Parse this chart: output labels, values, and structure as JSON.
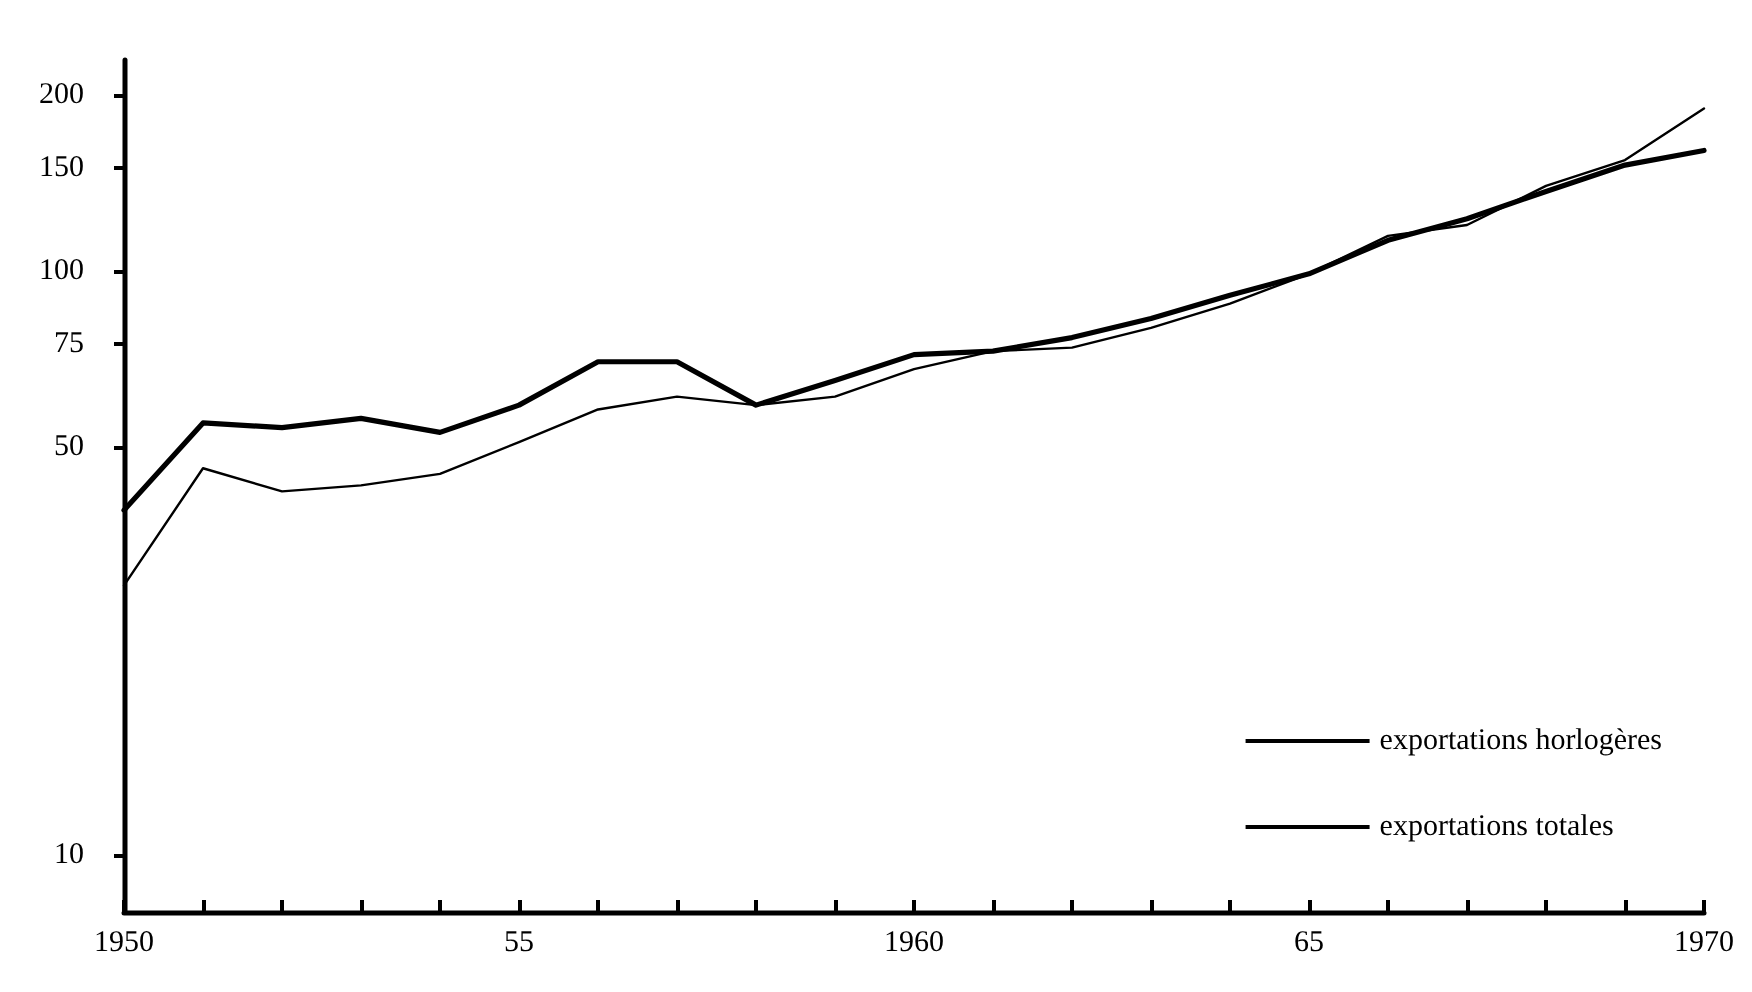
{
  "chart_data": {
    "type": "line",
    "log": "y",
    "grid": false,
    "marker": "none",
    "line_style": "solid",
    "legend": "bottom right",
    "x": [
      1950,
      1951,
      1952,
      1953,
      1954,
      1955,
      1956,
      1957,
      1958,
      1959,
      1960,
      1961,
      1962,
      1963,
      1964,
      1965,
      1966,
      1967,
      1968,
      1969,
      1970
    ],
    "xlim": [
      1950,
      1970
    ],
    "xticks": [
      {
        "value": 1950,
        "label": "1950"
      },
      {
        "value": 1951,
        "label": null
      },
      {
        "value": 1952,
        "label": null
      },
      {
        "value": 1953,
        "label": null
      },
      {
        "value": 1954,
        "label": null
      },
      {
        "value": 1955,
        "label": "55"
      },
      {
        "value": 1956,
        "label": null
      },
      {
        "value": 1957,
        "label": null
      },
      {
        "value": 1958,
        "label": null
      },
      {
        "value": 1959,
        "label": null
      },
      {
        "value": 1960,
        "label": "1960"
      },
      {
        "value": 1961,
        "label": null
      },
      {
        "value": 1962,
        "label": null
      },
      {
        "value": 1963,
        "label": null
      },
      {
        "value": 1964,
        "label": null
      },
      {
        "value": 1965,
        "label": "65"
      },
      {
        "value": 1966,
        "label": null
      },
      {
        "value": 1967,
        "label": null
      },
      {
        "value": 1968,
        "label": null
      },
      {
        "value": 1969,
        "label": null
      },
      {
        "value": 1970,
        "label": "1970"
      }
    ],
    "ylim": [
      8,
      230
    ],
    "yticks": [
      10,
      50,
      75,
      100,
      150,
      200
    ],
    "series": [
      {
        "name": "exportations horlogères",
        "color": "#000000",
        "values": [
          39,
          55,
          54,
          56,
          53,
          59,
          70,
          70,
          59,
          65,
          72,
          73,
          77,
          83,
          91,
          99,
          113,
          123,
          137,
          152,
          161
        ]
      },
      {
        "name": "exportations totales",
        "color": "#000000",
        "values": [
          29,
          46,
          42,
          43,
          45,
          51,
          58,
          61,
          59,
          61,
          68,
          73,
          74,
          80,
          88,
          99,
          115,
          120,
          140,
          155,
          190
        ]
      }
    ]
  }
}
